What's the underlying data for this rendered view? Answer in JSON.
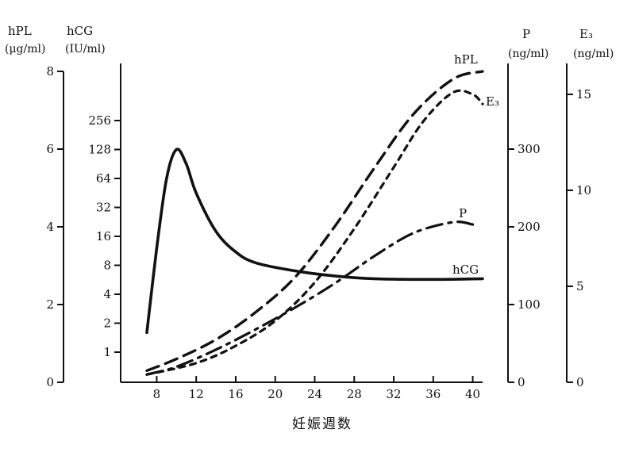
{
  "chart_data": {
    "type": "line",
    "x": {
      "label": "妊娠週数",
      "ticks": [
        8,
        12,
        16,
        20,
        24,
        28,
        32,
        36,
        40
      ],
      "range": [
        7,
        41
      ]
    },
    "axes": {
      "hpl": {
        "title": "hPL",
        "unit": "(μg/ml)",
        "ticks": [
          "0",
          "2",
          "4",
          "6",
          "8"
        ],
        "range": [
          0,
          8
        ]
      },
      "hcg": {
        "title": "hCG",
        "unit": "(IU/ml)",
        "ticks": [
          "1",
          "2",
          "4",
          "8",
          "16",
          "32",
          "64",
          "128",
          "256"
        ],
        "scale": "log2"
      },
      "p": {
        "title": "P",
        "unit": "(ng/ml)",
        "ticks": [
          "0",
          "100",
          "200",
          "300"
        ],
        "range": [
          0,
          400
        ]
      },
      "e3": {
        "title": "E₃",
        "unit": "(ng/ml)",
        "ticks": [
          "0",
          "5",
          "10",
          "15"
        ],
        "range": [
          0,
          17
        ]
      }
    },
    "series": [
      {
        "name": "hPL",
        "axis": "hpl",
        "style": "long-dash",
        "points": [
          [
            7,
            0.3
          ],
          [
            10,
            0.6
          ],
          [
            14,
            1.1
          ],
          [
            18,
            1.8
          ],
          [
            22,
            2.7
          ],
          [
            26,
            4.0
          ],
          [
            30,
            5.5
          ],
          [
            34,
            6.9
          ],
          [
            38,
            7.8
          ],
          [
            41,
            8.0
          ]
        ]
      },
      {
        "name": "E₃",
        "axis": "e3",
        "style": "short-dash",
        "points": [
          [
            7,
            0.4
          ],
          [
            12,
            1.0
          ],
          [
            16,
            1.9
          ],
          [
            20,
            3.2
          ],
          [
            24,
            5.2
          ],
          [
            28,
            8.0
          ],
          [
            32,
            11.2
          ],
          [
            35,
            13.6
          ],
          [
            38,
            15.1
          ],
          [
            40,
            15.0
          ],
          [
            41,
            14.5
          ]
        ]
      },
      {
        "name": "P",
        "axis": "p",
        "style": "dash-dot",
        "points": [
          [
            7,
            10
          ],
          [
            10,
            20
          ],
          [
            14,
            42
          ],
          [
            18,
            68
          ],
          [
            22,
            96
          ],
          [
            26,
            127
          ],
          [
            30,
            162
          ],
          [
            34,
            192
          ],
          [
            38,
            206
          ],
          [
            40,
            203
          ]
        ]
      },
      {
        "name": "hCG",
        "axis": "hcg",
        "style": "solid",
        "points": [
          [
            7,
            1.6
          ],
          [
            8,
            12
          ],
          [
            9,
            64
          ],
          [
            10,
            128
          ],
          [
            11,
            90
          ],
          [
            12,
            45
          ],
          [
            14,
            18
          ],
          [
            16,
            11
          ],
          [
            18,
            8.5
          ],
          [
            22,
            7
          ],
          [
            26,
            6.2
          ],
          [
            30,
            5.8
          ],
          [
            36,
            5.7
          ],
          [
            41,
            5.8
          ]
        ]
      }
    ]
  }
}
